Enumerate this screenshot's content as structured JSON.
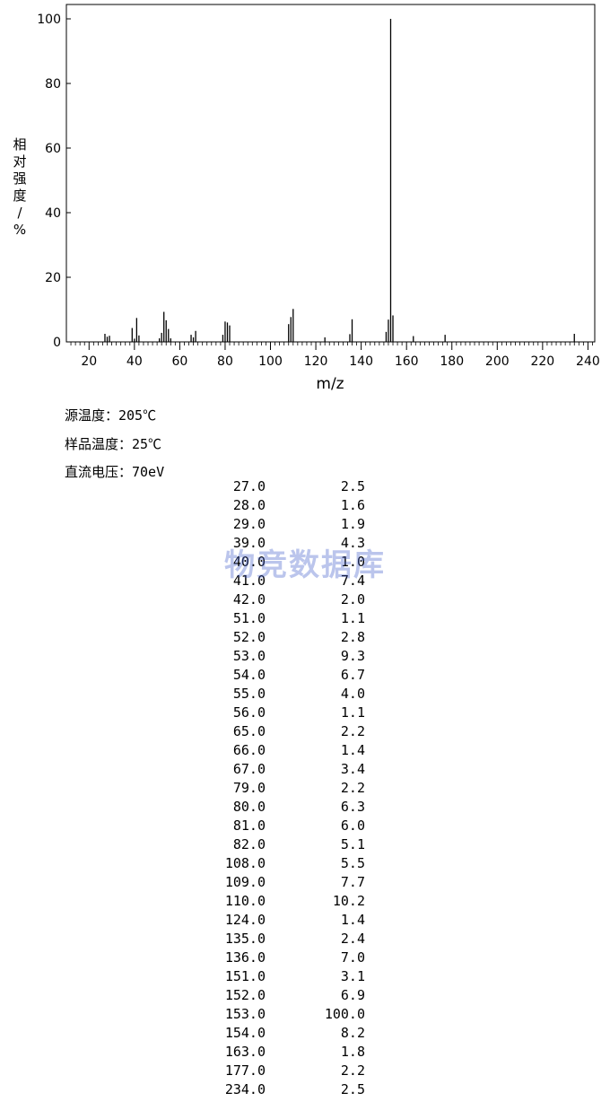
{
  "chart_data": {
    "type": "bar",
    "xlabel": "m/z",
    "ylabel": "相对强度/%",
    "xlim": [
      10,
      243
    ],
    "ylim": [
      0,
      100
    ],
    "xticks": [
      20,
      40,
      60,
      80,
      100,
      120,
      140,
      160,
      180,
      200,
      220,
      240
    ],
    "yticks": [
      0,
      20,
      40,
      60,
      80,
      100
    ],
    "grid": false,
    "peaks": [
      {
        "mz": 27.0,
        "intensity": 2.5
      },
      {
        "mz": 28.0,
        "intensity": 1.6
      },
      {
        "mz": 29.0,
        "intensity": 1.9
      },
      {
        "mz": 39.0,
        "intensity": 4.3
      },
      {
        "mz": 40.0,
        "intensity": 1.0
      },
      {
        "mz": 41.0,
        "intensity": 7.4
      },
      {
        "mz": 42.0,
        "intensity": 2.0
      },
      {
        "mz": 51.0,
        "intensity": 1.1
      },
      {
        "mz": 52.0,
        "intensity": 2.8
      },
      {
        "mz": 53.0,
        "intensity": 9.3
      },
      {
        "mz": 54.0,
        "intensity": 6.7
      },
      {
        "mz": 55.0,
        "intensity": 4.0
      },
      {
        "mz": 56.0,
        "intensity": 1.1
      },
      {
        "mz": 65.0,
        "intensity": 2.2
      },
      {
        "mz": 66.0,
        "intensity": 1.4
      },
      {
        "mz": 67.0,
        "intensity": 3.4
      },
      {
        "mz": 79.0,
        "intensity": 2.2
      },
      {
        "mz": 80.0,
        "intensity": 6.3
      },
      {
        "mz": 81.0,
        "intensity": 6.0
      },
      {
        "mz": 82.0,
        "intensity": 5.1
      },
      {
        "mz": 108.0,
        "intensity": 5.5
      },
      {
        "mz": 109.0,
        "intensity": 7.7
      },
      {
        "mz": 110.0,
        "intensity": 10.2
      },
      {
        "mz": 124.0,
        "intensity": 1.4
      },
      {
        "mz": 135.0,
        "intensity": 2.4
      },
      {
        "mz": 136.0,
        "intensity": 7.0
      },
      {
        "mz": 151.0,
        "intensity": 3.1
      },
      {
        "mz": 152.0,
        "intensity": 6.9
      },
      {
        "mz": 153.0,
        "intensity": 100.0
      },
      {
        "mz": 154.0,
        "intensity": 8.2
      },
      {
        "mz": 163.0,
        "intensity": 1.8
      },
      {
        "mz": 177.0,
        "intensity": 2.2
      },
      {
        "mz": 234.0,
        "intensity": 2.5
      }
    ]
  },
  "conditions": {
    "source_temp": "源温度：205℃",
    "sample_temp": "样品温度：25℃",
    "voltage": "直流电压：70eV"
  },
  "table": {
    "rows": [
      [
        "27.0",
        "2.5"
      ],
      [
        "28.0",
        "1.6"
      ],
      [
        "29.0",
        "1.9"
      ],
      [
        "39.0",
        "4.3"
      ],
      [
        "40.0",
        "1.0"
      ],
      [
        "41.0",
        "7.4"
      ],
      [
        "42.0",
        "2.0"
      ],
      [
        "51.0",
        "1.1"
      ],
      [
        "52.0",
        "2.8"
      ],
      [
        "53.0",
        "9.3"
      ],
      [
        "54.0",
        "6.7"
      ],
      [
        "55.0",
        "4.0"
      ],
      [
        "56.0",
        "1.1"
      ],
      [
        "65.0",
        "2.2"
      ],
      [
        "66.0",
        "1.4"
      ],
      [
        "67.0",
        "3.4"
      ],
      [
        "79.0",
        "2.2"
      ],
      [
        "80.0",
        "6.3"
      ],
      [
        "81.0",
        "6.0"
      ],
      [
        "82.0",
        "5.1"
      ],
      [
        "108.0",
        "5.5"
      ],
      [
        "109.0",
        "7.7"
      ],
      [
        "110.0",
        "10.2"
      ],
      [
        "124.0",
        "1.4"
      ],
      [
        "135.0",
        "2.4"
      ],
      [
        "136.0",
        "7.0"
      ],
      [
        "151.0",
        "3.1"
      ],
      [
        "152.0",
        "6.9"
      ],
      [
        "153.0",
        "100.0"
      ],
      [
        "154.0",
        "8.2"
      ],
      [
        "163.0",
        "1.8"
      ],
      [
        "177.0",
        "2.2"
      ],
      [
        "234.0",
        "2.5"
      ]
    ]
  },
  "watermark": "物竞数据库"
}
